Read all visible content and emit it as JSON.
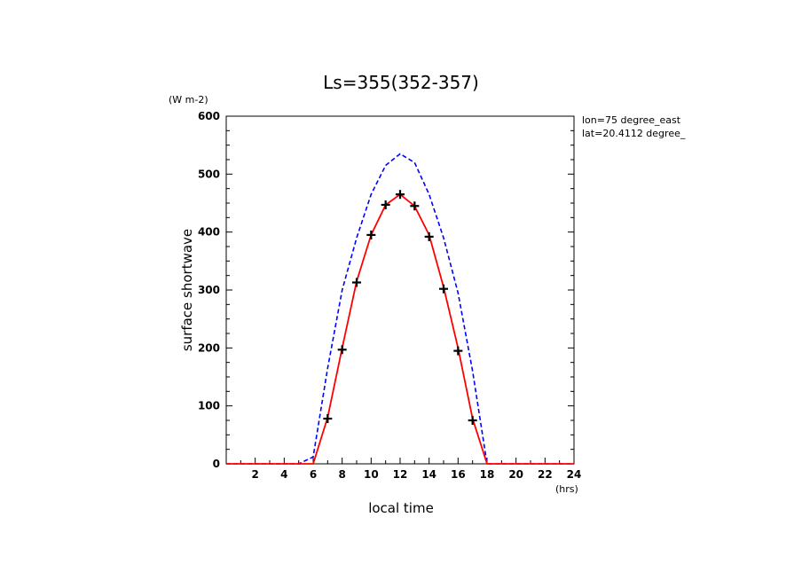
{
  "chart_data": {
    "type": "line",
    "title": "Ls=355(352-357)",
    "xlabel": "local time",
    "ylabel": "surface shortwave",
    "x_unit": "(hrs)",
    "y_unit": "(W m-2)",
    "xlim": [
      0,
      24
    ],
    "ylim": [
      0,
      600
    ],
    "x_ticks": [
      2,
      4,
      6,
      8,
      10,
      12,
      14,
      16,
      18,
      20,
      22,
      24
    ],
    "y_ticks": [
      0,
      100,
      200,
      300,
      400,
      500,
      600
    ],
    "annotations": [
      "lon=75 degree_east",
      "lat=20.4112 degree_"
    ],
    "grid": false,
    "series": [
      {
        "style": "dashed",
        "color": "#0000ff",
        "x": [
          0,
          1,
          2,
          3,
          4,
          5,
          6,
          7,
          8,
          9,
          10,
          11,
          12,
          13,
          14,
          15,
          16,
          17,
          18,
          19,
          20,
          21,
          22,
          23,
          24
        ],
        "y": [
          0,
          0,
          0,
          0,
          0,
          0,
          12,
          165,
          300,
          390,
          465,
          515,
          535,
          520,
          465,
          390,
          295,
          160,
          0,
          0,
          0,
          0,
          0,
          0,
          0
        ]
      },
      {
        "style": "solid",
        "color": "#ff0000",
        "x": [
          0,
          1,
          2,
          3,
          4,
          5,
          6,
          7,
          8,
          9,
          10,
          11,
          12,
          13,
          14,
          15,
          16,
          17,
          18,
          19,
          20,
          21,
          22,
          23,
          24
        ],
        "y": [
          0,
          0,
          0,
          0,
          0,
          0,
          0,
          80,
          200,
          315,
          395,
          447,
          465,
          445,
          395,
          305,
          200,
          78,
          0,
          0,
          0,
          0,
          0,
          0,
          0
        ]
      },
      {
        "style": "markers",
        "marker": "plus",
        "color": "#000000",
        "x": [
          7,
          8,
          9,
          10,
          11,
          12,
          13,
          14,
          15,
          16,
          17
        ],
        "y": [
          78,
          197,
          313,
          395,
          447,
          465,
          445,
          392,
          302,
          195,
          75
        ]
      }
    ]
  }
}
